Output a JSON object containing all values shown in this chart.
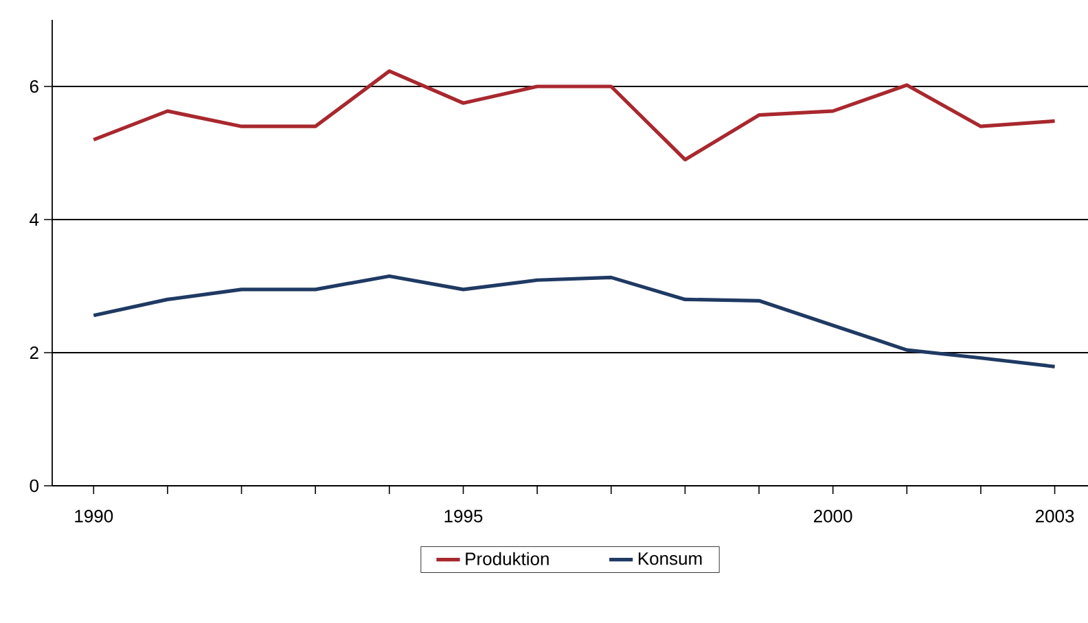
{
  "chart_data": {
    "type": "line",
    "x": [
      1990,
      1991,
      1992,
      1993,
      1994,
      1995,
      1996,
      1997,
      1998,
      1999,
      2000,
      2001,
      2002,
      2003
    ],
    "series": [
      {
        "name": "Produktion",
        "color": "#a8282e",
        "values": [
          5.2,
          5.63,
          5.4,
          5.4,
          6.23,
          5.75,
          6.0,
          6.0,
          4.9,
          5.57,
          5.63,
          6.02,
          5.4,
          5.48
        ]
      },
      {
        "name": "Konsum",
        "color": "#1f3a63",
        "values": [
          2.56,
          2.8,
          2.95,
          2.95,
          3.15,
          2.95,
          3.09,
          3.13,
          2.8,
          2.78,
          2.41,
          2.04,
          1.92,
          1.79
        ]
      }
    ],
    "xlim": [
      1989.44,
      2003.45
    ],
    "ylim": [
      0,
      7
    ],
    "xticks": [
      1990,
      {
        "value": 1991,
        "label": null
      },
      {
        "value": 1992,
        "label": null
      },
      {
        "value": 1993,
        "label": null
      },
      {
        "value": 1994,
        "label": null
      },
      1995,
      {
        "value": 1996,
        "label": null
      },
      {
        "value": 1997,
        "label": null
      },
      {
        "value": 1998,
        "label": null
      },
      {
        "value": 1999,
        "label": null
      },
      2000,
      {
        "value": 2001,
        "label": null
      },
      {
        "value": 2002,
        "label": null
      },
      2003
    ],
    "yticks": [
      0,
      2,
      4,
      6
    ],
    "grid": "y",
    "legend": "bottom",
    "marker": "none",
    "line_style": "solid"
  }
}
